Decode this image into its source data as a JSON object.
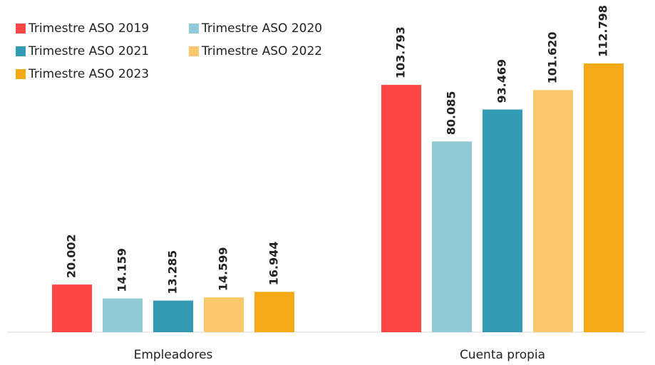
{
  "chart_data": {
    "type": "bar",
    "categories": [
      "Empleadores",
      "Cuenta propia"
    ],
    "series": [
      {
        "name": "Trimestre ASO 2019",
        "color": "#ff4747",
        "values": [
          20002,
          103793
        ],
        "value_labels": [
          "20.002",
          "103.793"
        ]
      },
      {
        "name": "Trimestre ASO 2020",
        "color": "#92c9d6",
        "values": [
          14159,
          80085
        ],
        "value_labels": [
          "14.159",
          "80.085"
        ]
      },
      {
        "name": "Trimestre ASO 2021",
        "color": "#339bb4",
        "values": [
          13285,
          93469
        ],
        "value_labels": [
          "13.285",
          "93.469"
        ]
      },
      {
        "name": "Trimestre ASO 2022",
        "color": "#f8c96a",
        "values": [
          14599,
          101620
        ],
        "value_labels": [
          "14.599",
          "101.620"
        ]
      },
      {
        "name": "Trimestre ASO 2023",
        "color": "#f4a916",
        "values": [
          16944,
          112798
        ],
        "value_labels": [
          "16.944",
          "112.798"
        ]
      }
    ],
    "legend": "top-left"
  }
}
